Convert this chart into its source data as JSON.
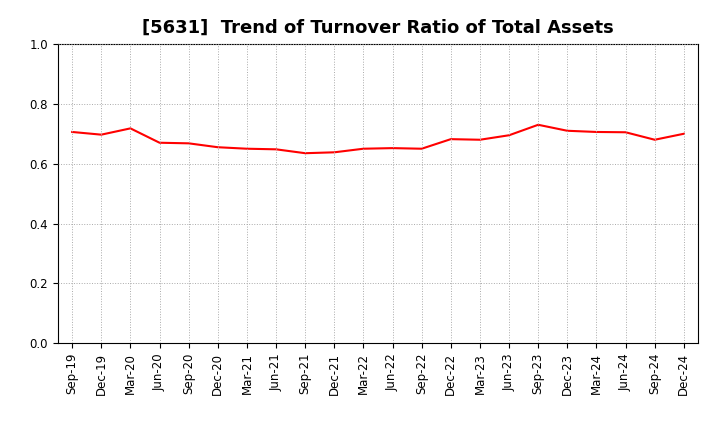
{
  "title": "[5631]  Trend of Turnover Ratio of Total Assets",
  "x_labels": [
    "Sep-19",
    "Dec-19",
    "Mar-20",
    "Jun-20",
    "Sep-20",
    "Dec-20",
    "Mar-21",
    "Jun-21",
    "Sep-21",
    "Dec-21",
    "Mar-22",
    "Jun-22",
    "Sep-22",
    "Dec-22",
    "Mar-23",
    "Jun-23",
    "Sep-23",
    "Dec-23",
    "Mar-24",
    "Jun-24",
    "Sep-24",
    "Dec-24"
  ],
  "values": [
    0.706,
    0.697,
    0.718,
    0.67,
    0.668,
    0.655,
    0.65,
    0.648,
    0.635,
    0.638,
    0.65,
    0.652,
    0.65,
    0.682,
    0.68,
    0.695,
    0.73,
    0.71,
    0.706,
    0.705,
    0.68,
    0.7
  ],
  "line_color": "#ff0000",
  "line_width": 1.5,
  "ylim": [
    0.0,
    1.0
  ],
  "yticks": [
    0.0,
    0.2,
    0.4,
    0.6,
    0.8,
    1.0
  ],
  "background_color": "#ffffff",
  "grid_color": "#aaaaaa",
  "title_fontsize": 13,
  "tick_fontsize": 8.5
}
